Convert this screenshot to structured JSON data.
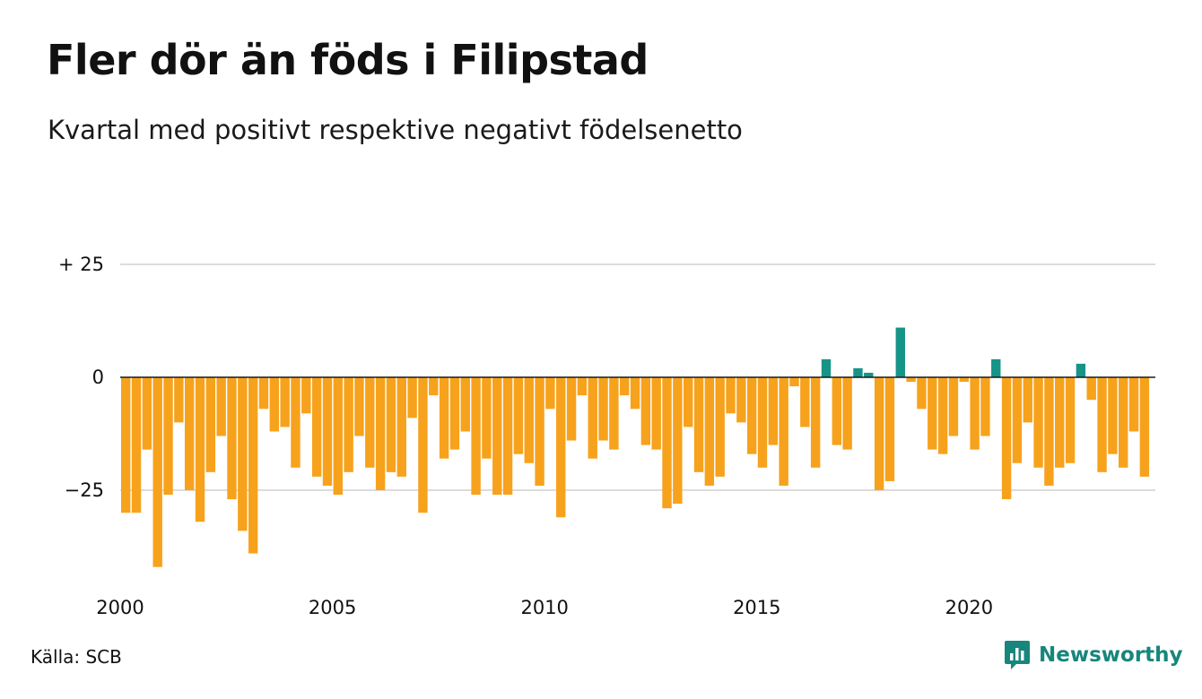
{
  "title": "Fler dör än föds i Filipstad",
  "subtitle": "Kvartal med positivt respektive negativt födelsenetto",
  "source": "Källa: SCB",
  "brand": "Newsworthy",
  "colors": {
    "negative": "#f7a21c",
    "positive": "#169487",
    "grid": "#dcdcdc",
    "zero": "#1a1a1a",
    "brand": "#17867c"
  },
  "icons": {
    "brand_logo": "newsworthy-chart-bubble-icon"
  },
  "chart_data": {
    "type": "bar",
    "x_start": "2000 Q1",
    "ylim": [
      -43,
      26
    ],
    "y_ticks": [
      {
        "value": 25,
        "label": "+ 25"
      },
      {
        "value": 0,
        "label": "0"
      },
      {
        "value": -25,
        "label": "−25"
      }
    ],
    "x_ticks": [
      {
        "index": 0,
        "label": "2000"
      },
      {
        "index": 20,
        "label": "2005"
      },
      {
        "index": 40,
        "label": "2010"
      },
      {
        "index": 60,
        "label": "2015"
      },
      {
        "index": 80,
        "label": "2020"
      }
    ],
    "grid": true,
    "legend": false,
    "values": [
      -30,
      -30,
      -16,
      -42,
      -26,
      -10,
      -25,
      -32,
      -21,
      -13,
      -27,
      -34,
      -39,
      -7,
      -12,
      -11,
      -20,
      -8,
      -22,
      -24,
      -26,
      -21,
      -13,
      -20,
      -25,
      -21,
      -22,
      -9,
      -30,
      -4,
      -18,
      -16,
      -12,
      -26,
      -18,
      -26,
      -26,
      -17,
      -19,
      -24,
      -7,
      -31,
      -14,
      -4,
      -18,
      -14,
      -16,
      -4,
      -7,
      -15,
      -16,
      -29,
      -28,
      -11,
      -21,
      -24,
      -22,
      -8,
      -10,
      -17,
      -20,
      -15,
      -24,
      -2,
      -11,
      -20,
      4,
      -15,
      -16,
      2,
      1,
      -25,
      -23,
      11,
      -1,
      -7,
      -16,
      -17,
      -13,
      -1,
      -16,
      -13,
      4,
      -27,
      -19,
      -10,
      -20,
      -24,
      -20,
      -19,
      3,
      -5,
      -21,
      -17,
      -20,
      -12,
      -22
    ]
  }
}
